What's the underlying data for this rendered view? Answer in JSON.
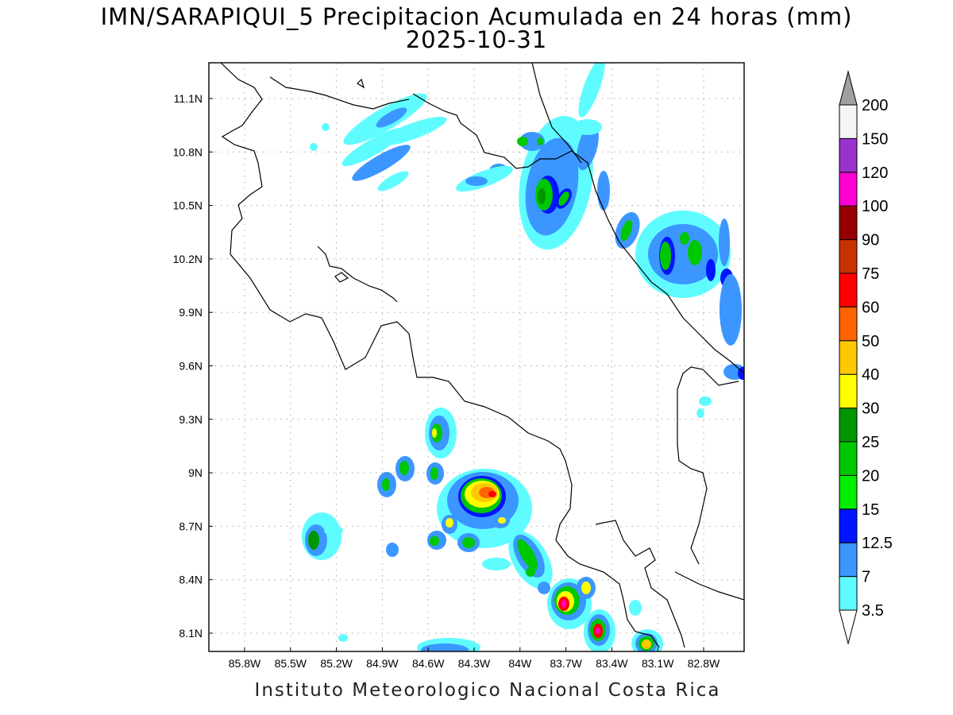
{
  "title": "IMN/SARAPIQUI_5 Precipitacion Acumulada en 24 horas (mm)",
  "date": "2025-10-31",
  "footer": "Instituto Meteorologico Nacional Costa Rica",
  "axes": {
    "lon_labels": [
      "85.8W",
      "85.5W",
      "85.2W",
      "84.9W",
      "84.6W",
      "84.3W",
      "84W",
      "83.7W",
      "83.4W",
      "83.1W",
      "82.8W"
    ],
    "lat_labels": [
      "11.1N",
      "10.8N",
      "10.5N",
      "10.2N",
      "9.9N",
      "9.6N",
      "9.3N",
      "9N",
      "8.7N",
      "8.4N",
      "8.1N"
    ]
  },
  "colorbar": {
    "levels": [
      "3.5",
      "7",
      "12.5",
      "15",
      "20",
      "25",
      "30",
      "40",
      "50",
      "60",
      "75",
      "90",
      "100",
      "120",
      "150",
      "200"
    ],
    "colors": [
      "#5ffcff",
      "#3c96ff",
      "#0014ff",
      "#00ee00",
      "#00c800",
      "#009600",
      "#ffff00",
      "#ffc800",
      "#ff6400",
      "#ff0000",
      "#c83200",
      "#960000",
      "#ff00d2",
      "#9932cc",
      "#f5f5f5",
      "#a0a0a0"
    ]
  }
}
